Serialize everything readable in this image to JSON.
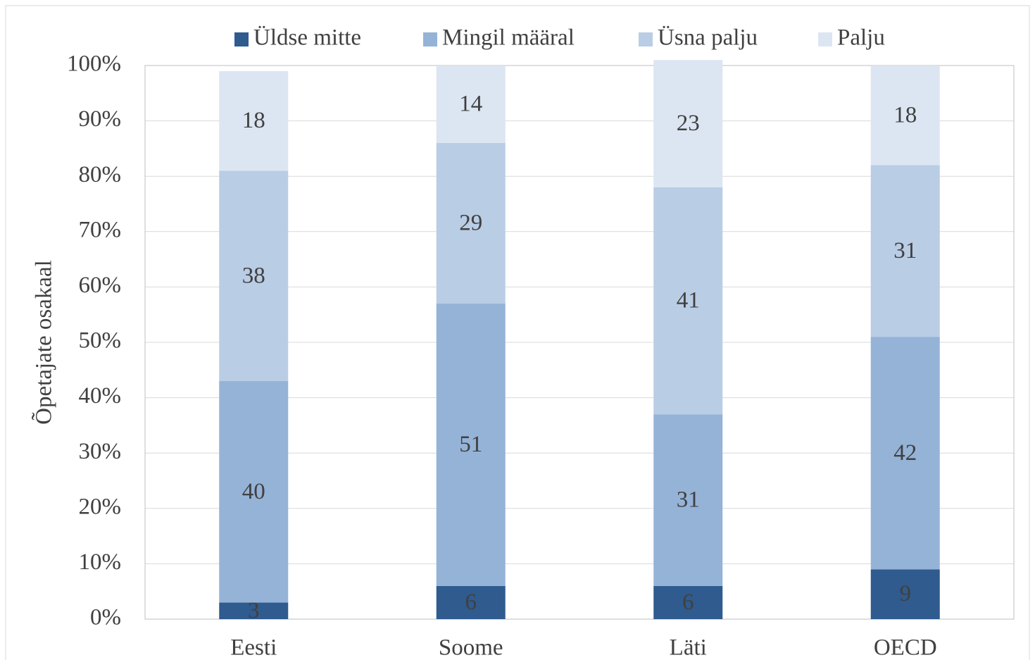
{
  "chart_data": {
    "type": "stacked_bar",
    "y_label": "Õpetajate osakaal",
    "categories": [
      "Eesti",
      "Soome",
      "Läti",
      "OECD"
    ],
    "series": [
      {
        "name": "Üldse mitte",
        "color": "#2f5b8e",
        "values": [
          3,
          6,
          6,
          9
        ]
      },
      {
        "name": "Mingil määral",
        "color": "#95b3d7",
        "values": [
          40,
          51,
          31,
          42
        ]
      },
      {
        "name": "Üsna palju",
        "color": "#b9cde5",
        "values": [
          38,
          29,
          41,
          31
        ]
      },
      {
        "name": "Palju",
        "color": "#dce6f2",
        "values": [
          18,
          14,
          23,
          18
        ]
      }
    ],
    "ylim": [
      0,
      100
    ],
    "yticks": [
      {
        "value": 0,
        "label": "0%"
      },
      {
        "value": 10,
        "label": "10%"
      },
      {
        "value": 20,
        "label": "20%"
      },
      {
        "value": 30,
        "label": "30%"
      },
      {
        "value": 40,
        "label": "40%"
      },
      {
        "value": 50,
        "label": "50%"
      },
      {
        "value": 60,
        "label": "60%"
      },
      {
        "value": 70,
        "label": "70%"
      },
      {
        "value": 80,
        "label": "80%"
      },
      {
        "value": 90,
        "label": "90%"
      },
      {
        "value": 100,
        "label": "100%"
      }
    ],
    "grid": true,
    "legend": "top"
  }
}
